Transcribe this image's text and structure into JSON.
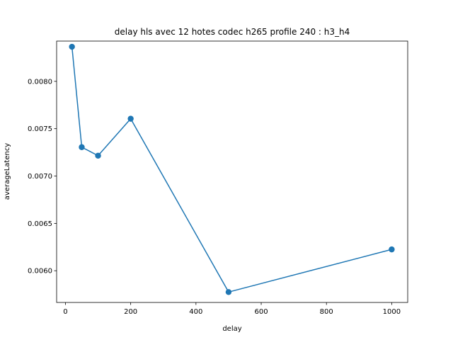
{
  "chart_data": {
    "type": "line",
    "title": "delay hls avec 12 hotes codec h265 profile 240 : h3_h4",
    "xlabel": "delay",
    "ylabel": "averageLatency",
    "xlim": [
      -27,
      1049
    ],
    "ylim": [
      0.005665,
      0.008425
    ],
    "grid": false,
    "series": [
      {
        "color": "#1f77b4",
        "marker": "circle",
        "x": [
          20,
          50,
          100,
          200,
          500,
          1000
        ],
        "y": [
          0.008365,
          0.007305,
          0.007215,
          0.007605,
          0.005775,
          0.006225
        ]
      }
    ],
    "xticks": [
      {
        "value": 0,
        "label": "0"
      },
      {
        "value": 200,
        "label": "200"
      },
      {
        "value": 400,
        "label": "400"
      },
      {
        "value": 600,
        "label": "600"
      },
      {
        "value": 800,
        "label": "800"
      },
      {
        "value": 1000,
        "label": "1000"
      }
    ],
    "yticks": [
      {
        "value": 0.006,
        "label": "0.0060"
      },
      {
        "value": 0.0065,
        "label": "0.0065"
      },
      {
        "value": 0.007,
        "label": "0.0070"
      },
      {
        "value": 0.0075,
        "label": "0.0075"
      },
      {
        "value": 0.008,
        "label": "0.0080"
      }
    ]
  }
}
